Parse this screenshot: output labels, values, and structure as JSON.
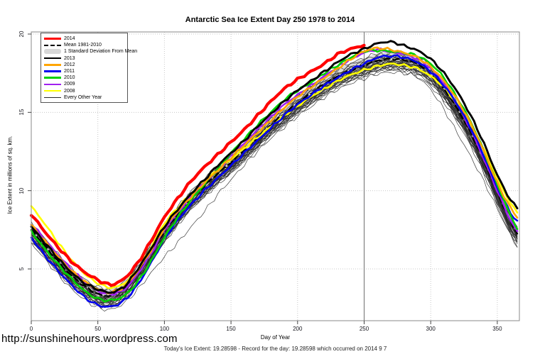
{
  "title": "Antarctic Sea Ice Extent Day 250 1978 to 2014",
  "footer": {
    "url": "http://sunshinehours.wordpress.com",
    "status": "Today's Ice Extent: 19.28598  - Record for the day: 19.28598 which occurred on 2014 9 7"
  },
  "legend": [
    {
      "label": "2014",
      "type": "line",
      "color": "#ff0000",
      "width": 3.5
    },
    {
      "label": "Mean 1981-2010",
      "type": "dashed",
      "color": "#000000",
      "width": 2.5
    },
    {
      "label": "1 Standard Deviation From Mean",
      "type": "band",
      "color": "#d8d8d8",
      "width": 7
    },
    {
      "label": "2013",
      "type": "line",
      "color": "#000000",
      "width": 2.5
    },
    {
      "label": "2012",
      "type": "line",
      "color": "#ffa500",
      "width": 2.5
    },
    {
      "label": "2011",
      "type": "line",
      "color": "#0000ee",
      "width": 2.5
    },
    {
      "label": "2010",
      "type": "line",
      "color": "#00d200",
      "width": 2.5
    },
    {
      "label": "2009",
      "type": "line",
      "color": "#a020f0",
      "width": 2.5
    },
    {
      "label": "2008",
      "type": "line",
      "color": "#ffff00",
      "width": 2.5
    },
    {
      "label": "Every Other Year",
      "type": "line",
      "color": "#2a2a2a",
      "width": 1
    }
  ],
  "chart_data": {
    "type": "line",
    "title": "Antarctic Sea Ice Extent Day 250 1978 to 2014",
    "xlabel": "Day of Year",
    "ylabel": "Ice Extent in millions of sq. km.",
    "xlim": [
      0,
      366.5
    ],
    "ylim": [
      1.7,
      20.15
    ],
    "x_ticks": [
      0,
      50,
      100,
      150,
      200,
      250,
      300,
      350
    ],
    "y_ticks": [
      5,
      10,
      15,
      20
    ],
    "grid": "dotted",
    "legend_position": "top-left",
    "marker_day": 250,
    "sample_days": [
      0,
      10,
      20,
      30,
      40,
      50,
      60,
      70,
      80,
      90,
      100,
      110,
      120,
      130,
      140,
      150,
      160,
      170,
      180,
      190,
      200,
      210,
      220,
      230,
      240,
      250,
      260,
      270,
      280,
      290,
      300,
      310,
      320,
      330,
      340,
      350,
      360,
      365
    ],
    "series": [
      {
        "name": "2014",
        "color": "#ff0000",
        "width": 4.2,
        "end_day": 250,
        "values": [
          8.5,
          7.4,
          6.4,
          5.5,
          4.8,
          4.3,
          4.0,
          4.4,
          5.4,
          6.8,
          8.3,
          9.5,
          10.6,
          11.5,
          12.3,
          13.1,
          13.9,
          14.8,
          15.7,
          16.5,
          17.1,
          17.6,
          18.1,
          18.7,
          19.05,
          19.29
        ]
      },
      {
        "name": "Mean 1981-2010",
        "color": "#000000",
        "width": 2.3,
        "dashed": true,
        "values": [
          7.5,
          6.5,
          5.5,
          4.6,
          3.9,
          3.4,
          3.3,
          3.8,
          4.8,
          6.1,
          7.4,
          8.5,
          9.5,
          10.3,
          11.1,
          11.8,
          12.6,
          13.4,
          14.2,
          14.9,
          15.6,
          16.2,
          16.8,
          17.3,
          17.7,
          18.0,
          18.3,
          18.4,
          18.35,
          18.1,
          17.5,
          16.5,
          15.2,
          13.7,
          11.9,
          9.9,
          8.0,
          7.3
        ]
      },
      {
        "name": "2013",
        "color": "#000000",
        "width": 2.9,
        "values": [
          7.7,
          6.7,
          5.7,
          4.8,
          4.1,
          3.7,
          3.5,
          3.9,
          5.0,
          6.3,
          7.7,
          8.8,
          9.8,
          10.7,
          11.6,
          12.4,
          13.2,
          14.1,
          14.9,
          15.7,
          16.4,
          17.0,
          17.6,
          18.2,
          18.7,
          19.05,
          19.4,
          19.5,
          19.25,
          18.95,
          18.4,
          17.5,
          16.3,
          14.8,
          13.0,
          11.0,
          9.4,
          8.9
        ]
      },
      {
        "name": "2012",
        "color": "#ffa500",
        "width": 2.6,
        "values": [
          7.8,
          6.8,
          5.8,
          4.9,
          4.2,
          3.7,
          3.5,
          3.9,
          4.9,
          6.2,
          7.6,
          8.7,
          9.6,
          10.5,
          11.3,
          12.1,
          12.9,
          13.7,
          14.5,
          15.3,
          16.0,
          16.6,
          17.2,
          17.8,
          18.4,
          18.9,
          19.1,
          19.0,
          18.8,
          18.5,
          17.9,
          17.0,
          15.8,
          14.3,
          12.5,
          10.5,
          8.9,
          8.3
        ]
      },
      {
        "name": "2011",
        "color": "#0000ee",
        "width": 2.6,
        "values": [
          7.0,
          5.9,
          4.9,
          4.0,
          3.2,
          2.7,
          2.6,
          3.0,
          4.0,
          5.4,
          6.9,
          8.1,
          9.1,
          10.0,
          10.8,
          11.6,
          12.4,
          13.2,
          14.0,
          14.8,
          15.5,
          16.1,
          16.7,
          17.2,
          17.7,
          18.1,
          18.5,
          18.6,
          18.5,
          18.2,
          17.6,
          16.7,
          15.5,
          14.0,
          12.2,
          10.2,
          8.6,
          8.0
        ]
      },
      {
        "name": "2010",
        "color": "#00d200",
        "width": 2.6,
        "values": [
          7.4,
          6.3,
          5.3,
          4.4,
          3.6,
          3.1,
          3.0,
          3.3,
          4.2,
          5.5,
          7.0,
          8.3,
          9.4,
          10.4,
          11.4,
          12.4,
          13.3,
          14.2,
          15.0,
          15.8,
          16.4,
          16.9,
          17.5,
          18.0,
          18.5,
          18.9,
          18.95,
          18.9,
          18.8,
          18.6,
          18.1,
          17.2,
          15.9,
          14.4,
          12.5,
          10.4,
          8.4,
          7.6
        ]
      },
      {
        "name": "2009",
        "color": "#a020f0",
        "width": 2.6,
        "values": [
          7.9,
          6.9,
          5.9,
          5.0,
          4.2,
          3.6,
          3.4,
          3.7,
          4.7,
          6.0,
          7.5,
          8.6,
          9.6,
          10.5,
          11.3,
          12.2,
          13.0,
          13.9,
          14.7,
          15.5,
          16.1,
          16.7,
          17.3,
          17.9,
          18.4,
          18.8,
          19.0,
          18.9,
          18.7,
          18.4,
          17.8,
          16.8,
          15.5,
          13.9,
          12.0,
          10.0,
          8.1,
          7.4
        ]
      },
      {
        "name": "2008",
        "color": "#ffff00",
        "width": 2.6,
        "values": [
          9.0,
          7.9,
          6.7,
          5.6,
          4.7,
          4.1,
          3.8,
          4.1,
          5.0,
          6.4,
          7.9,
          8.9,
          9.8,
          10.6,
          11.3,
          12.0,
          12.7,
          13.4,
          14.1,
          14.8,
          15.4,
          16.0,
          16.5,
          17.0,
          17.4,
          17.7,
          17.95,
          18.1,
          18.0,
          17.8,
          17.3,
          16.6,
          15.5,
          14.2,
          12.6,
          10.8,
          9.2,
          8.6
        ]
      }
    ],
    "std_band": {
      "label": "1 Standard Deviation From Mean",
      "color": "#d8d8d8",
      "halfwidth": 0.45,
      "around": "Mean 1981-2010"
    },
    "other_years": {
      "label": "Every Other Year",
      "color": "#2a2a2a",
      "width": 0.7,
      "offsets_from_mean": [
        -0.55,
        -0.25,
        -0.7,
        -0.45,
        0.1,
        -0.35,
        -0.15,
        -0.5,
        -0.85,
        -0.3,
        -0.6,
        -0.2,
        -0.4,
        -0.1,
        -0.3,
        -0.45,
        -0.05,
        -0.25,
        -0.35,
        -0.55,
        -0.15,
        -0.05,
        0.05,
        -0.2,
        -0.65,
        0.15,
        0.0,
        0.2,
        0.35,
        0.45
      ],
      "anomalies": [
        {
          "index": 8,
          "center": 115,
          "width": 30,
          "depth": 1.0
        },
        {
          "index": 24,
          "center": 325,
          "width": 28,
          "depth": 0.9
        }
      ]
    },
    "marker_line": {
      "day": 250,
      "color": "#6e6e6e"
    }
  }
}
